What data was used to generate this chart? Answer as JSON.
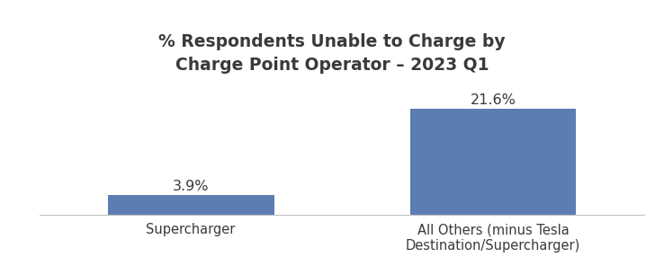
{
  "title": "% Respondents Unable to Charge by\nCharge Point Operator – 2023 Q1",
  "categories": [
    "Supercharger",
    "All Others (minus Tesla\nDestination/Supercharger)"
  ],
  "values": [
    3.9,
    21.6
  ],
  "bar_color": "#5b7db1",
  "bar_labels": [
    "3.9%",
    "21.6%"
  ],
  "ylim": [
    0,
    28
  ],
  "title_fontsize": 13.5,
  "label_fontsize": 11.5,
  "tick_fontsize": 10.5,
  "background_color": "#ffffff",
  "title_color": "#3a3a3a",
  "label_color": "#3a3a3a",
  "tick_color": "#3a3a3a",
  "bar_width": 0.55,
  "xlim": [
    -0.5,
    1.5
  ]
}
